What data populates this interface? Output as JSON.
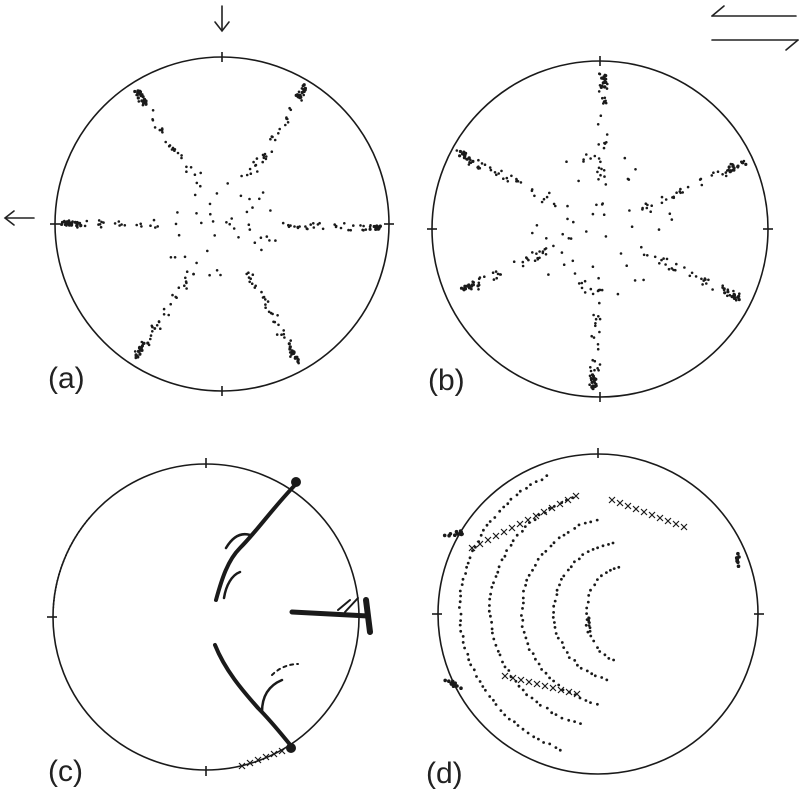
{
  "panels": [
    {
      "id": "a",
      "label": "(a)"
    },
    {
      "id": "b",
      "label": "(b)"
    },
    {
      "id": "c",
      "label": "(c)"
    },
    {
      "id": "d",
      "label": "(d)"
    }
  ],
  "annotations": {
    "arrow_top": "compression-arrow-down",
    "arrow_left": "compression-arrow-left",
    "shear_sense": "dextral-shear-half-arrows"
  },
  "colors": {
    "ink": "#1a1a1a",
    "background": "#ffffff"
  }
}
